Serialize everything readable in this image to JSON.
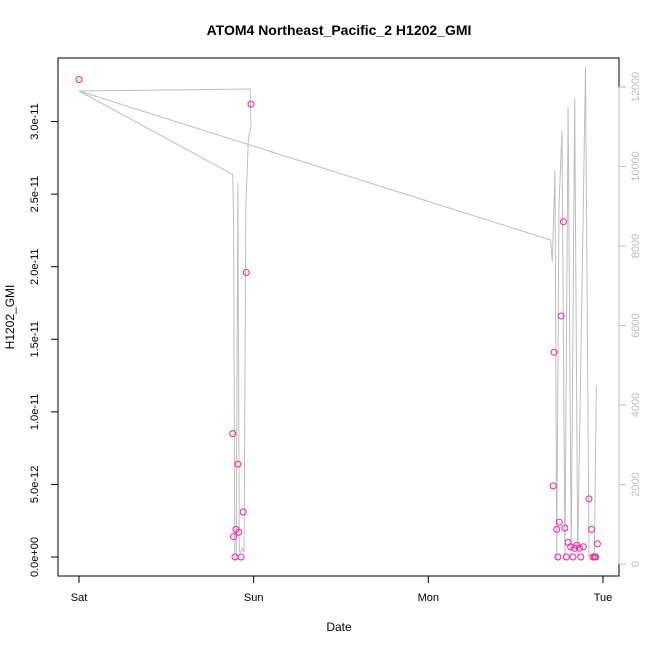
{
  "chart_data": {
    "type": "line",
    "title": "ATOM4 Northeast_Pacific_2 H1202_GMI",
    "xlabel": "Date",
    "ylabel": "H1202_GMI",
    "x_unit": "days",
    "x_ticks": [
      {
        "value": 0,
        "label": "Sat"
      },
      {
        "value": 1,
        "label": "Sun"
      },
      {
        "value": 2,
        "label": "Mon"
      },
      {
        "value": 3,
        "label": "Tue"
      }
    ],
    "xlim": [
      0,
      3
    ],
    "ylim_left": [
      0,
      3.3e-11
    ],
    "ylim_right": [
      0,
      12000
    ],
    "y_ticks_left": [
      {
        "value": 0,
        "label": "0.0e+00"
      },
      {
        "value": 5e-12,
        "label": "5.0e-12"
      },
      {
        "value": 1e-11,
        "label": "1.0e-11"
      },
      {
        "value": 1.5e-11,
        "label": "1.5e-11"
      },
      {
        "value": 2e-11,
        "label": "2.0e-11"
      },
      {
        "value": 2.5e-11,
        "label": "2.5e-11"
      },
      {
        "value": 3e-11,
        "label": "3.0e-11"
      }
    ],
    "y_ticks_right": [
      {
        "value": 0,
        "label": "0"
      },
      {
        "value": 2000,
        "label": "2000"
      },
      {
        "value": 4000,
        "label": "4000"
      },
      {
        "value": 6000,
        "label": "6000"
      },
      {
        "value": 8000,
        "label": "8000"
      },
      {
        "value": 10000,
        "label": "10000"
      },
      {
        "value": 12000,
        "label": "12000"
      }
    ],
    "series": [
      {
        "axis": "left",
        "style": "points",
        "color": "#ff1aa0",
        "points": [
          {
            "x": 0.0,
            "y": 3.29e-11
          },
          {
            "x": 0.88,
            "y": 8.5e-12
          },
          {
            "x": 0.885,
            "y": 1.4e-12
          },
          {
            "x": 0.893,
            "y": 0
          },
          {
            "x": 0.898,
            "y": 1.9e-12
          },
          {
            "x": 0.91,
            "y": 6.4e-12
          },
          {
            "x": 0.915,
            "y": 1.7e-12
          },
          {
            "x": 0.928,
            "y": 0
          },
          {
            "x": 0.94,
            "y": 3.1e-12
          },
          {
            "x": 0.958,
            "y": 1.96e-11
          },
          {
            "x": 0.985,
            "y": 3.12e-11
          },
          {
            "x": 2.72,
            "y": 1.41e-11
          },
          {
            "x": 2.715,
            "y": 4.9e-12
          },
          {
            "x": 2.735,
            "y": 1.9e-12
          },
          {
            "x": 2.742,
            "y": 0
          },
          {
            "x": 2.75,
            "y": 2.4e-12
          },
          {
            "x": 2.76,
            "y": 1.66e-11
          },
          {
            "x": 2.773,
            "y": 2.31e-11
          },
          {
            "x": 2.782,
            "y": 2e-12
          },
          {
            "x": 2.79,
            "y": 0
          },
          {
            "x": 2.8,
            "y": 1e-12
          },
          {
            "x": 2.815,
            "y": 7e-13
          },
          {
            "x": 2.828,
            "y": 0
          },
          {
            "x": 2.838,
            "y": 6e-13
          },
          {
            "x": 2.85,
            "y": 8e-13
          },
          {
            "x": 2.865,
            "y": 6e-13
          },
          {
            "x": 2.873,
            "y": 0
          },
          {
            "x": 2.888,
            "y": 7e-13
          },
          {
            "x": 2.92,
            "y": 4e-12
          },
          {
            "x": 2.935,
            "y": 1.9e-12
          },
          {
            "x": 2.943,
            "y": 0
          },
          {
            "x": 2.952,
            "y": 0
          },
          {
            "x": 2.958,
            "y": 0
          },
          {
            "x": 2.968,
            "y": 9e-13
          }
        ]
      },
      {
        "axis": "right",
        "style": "line",
        "color": "#bebebe",
        "points": [
          {
            "x": 0.0,
            "y": 11900
          },
          {
            "x": 0.98,
            "y": 11950
          },
          {
            "x": 0.985,
            "y": 11000
          },
          {
            "x": 0.97,
            "y": 10700
          },
          {
            "x": 0.955,
            "y": 9000
          },
          {
            "x": 0.945,
            "y": 300
          },
          {
            "x": 0.935,
            "y": 400
          },
          {
            "x": 0.927,
            "y": 300
          },
          {
            "x": 0.918,
            "y": 300
          },
          {
            "x": 0.91,
            "y": 9600
          },
          {
            "x": 0.9,
            "y": 100
          },
          {
            "x": 0.892,
            "y": 100
          },
          {
            "x": 0.885,
            "y": 8600
          },
          {
            "x": 0.88,
            "y": 9800
          },
          {
            "x": 0.0,
            "y": 11900
          },
          {
            "x": 2.7,
            "y": 8150
          },
          {
            "x": 2.71,
            "y": 7600
          },
          {
            "x": 2.725,
            "y": 9900
          },
          {
            "x": 2.735,
            "y": 100
          },
          {
            "x": 2.748,
            "y": 9000
          },
          {
            "x": 2.765,
            "y": 10900
          },
          {
            "x": 2.782,
            "y": 100
          },
          {
            "x": 2.8,
            "y": 11500
          },
          {
            "x": 2.818,
            "y": 200
          },
          {
            "x": 2.838,
            "y": 11700
          },
          {
            "x": 2.855,
            "y": 200
          },
          {
            "x": 2.9,
            "y": 12500
          },
          {
            "x": 2.92,
            "y": 200
          },
          {
            "x": 2.95,
            "y": 200
          },
          {
            "x": 2.962,
            "y": 4500
          }
        ]
      }
    ]
  }
}
